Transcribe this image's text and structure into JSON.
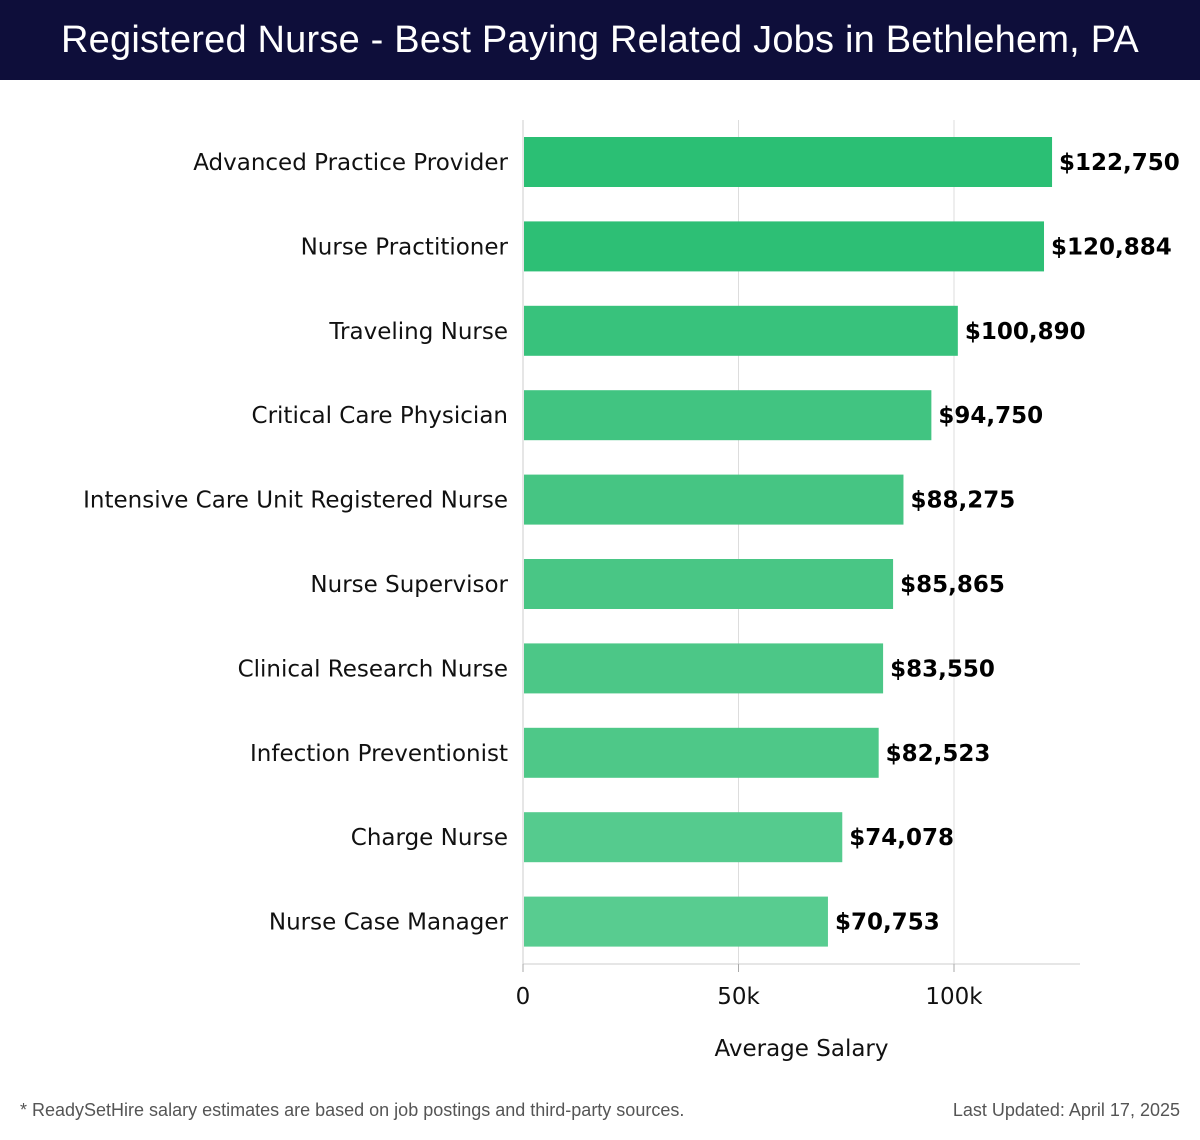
{
  "header": {
    "title": "Registered Nurse - Best Paying Related Jobs in Bethlehem, PA"
  },
  "chart_data": {
    "type": "bar",
    "orientation": "horizontal",
    "categories": [
      "Advanced Practice Provider",
      "Nurse Practitioner",
      "Traveling Nurse",
      "Critical Care Physician",
      "Intensive Care Unit Registered Nurse",
      "Nurse Supervisor",
      "Clinical Research Nurse",
      "Infection Preventionist",
      "Charge Nurse",
      "Nurse Case Manager"
    ],
    "values": [
      122750,
      120884,
      100890,
      94750,
      88275,
      85865,
      83550,
      82523,
      74078,
      70753
    ],
    "value_labels": [
      "$122,750",
      "$120,884",
      "$100,890",
      "$94,750",
      "$88,275",
      "$85,865",
      "$83,550",
      "$82,523",
      "$74,078",
      "$70,753"
    ],
    "xlabel": "Average Salary",
    "ylabel": "",
    "xlim": [
      0,
      130000
    ],
    "xticks": [
      0,
      50000,
      100000
    ],
    "xtick_labels": [
      "0",
      "50k",
      "100k"
    ],
    "grid": "vertical",
    "legend": "none",
    "bar_colors": [
      "#2bbf74",
      "#2dbf75",
      "#38c27c",
      "#41c481",
      "#46c583",
      "#49c685",
      "#4cc787",
      "#4ec888",
      "#55cb8e",
      "#58cc90"
    ]
  },
  "footer": {
    "note": "* ReadySetHire salary estimates are based on job postings and third-party sources.",
    "updated": "Last Updated: April 17, 2025"
  }
}
